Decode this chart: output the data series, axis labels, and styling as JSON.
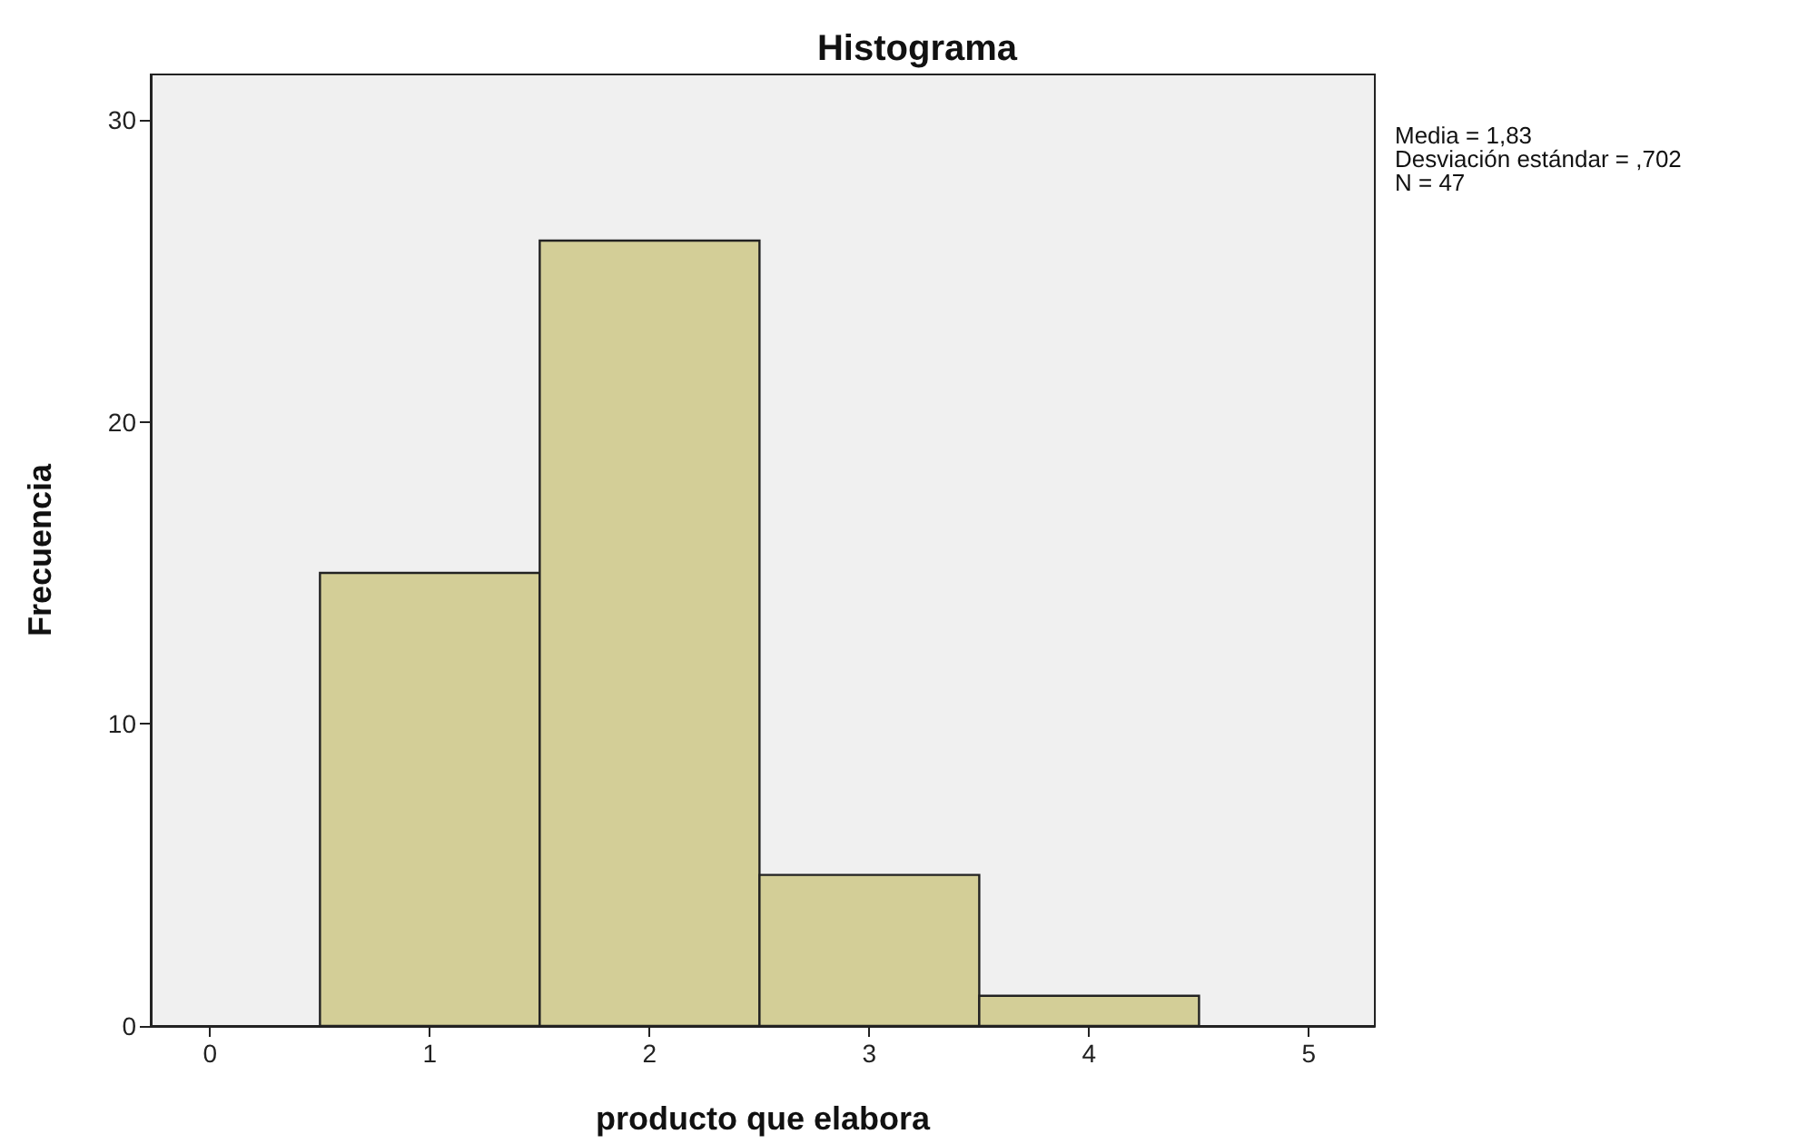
{
  "chart_data": {
    "type": "histogram",
    "title": "Histograma",
    "xlabel": "producto que elabora",
    "ylabel": "Frecuencia",
    "bins": [
      0.5,
      1.5,
      2.5,
      3.5,
      4.5
    ],
    "values": [
      15,
      26,
      5,
      1
    ],
    "color": "#d3ce97",
    "xlim": [
      -0.27,
      5.3
    ],
    "xticks": [
      0,
      1,
      2,
      3,
      4,
      5
    ],
    "ylim": [
      0,
      31.5
    ],
    "yticks": [
      0,
      10,
      20,
      30
    ],
    "grid": false,
    "annotations": [
      "Media = 1,83",
      "Desviación estándar = ,702",
      "N = 47"
    ]
  }
}
